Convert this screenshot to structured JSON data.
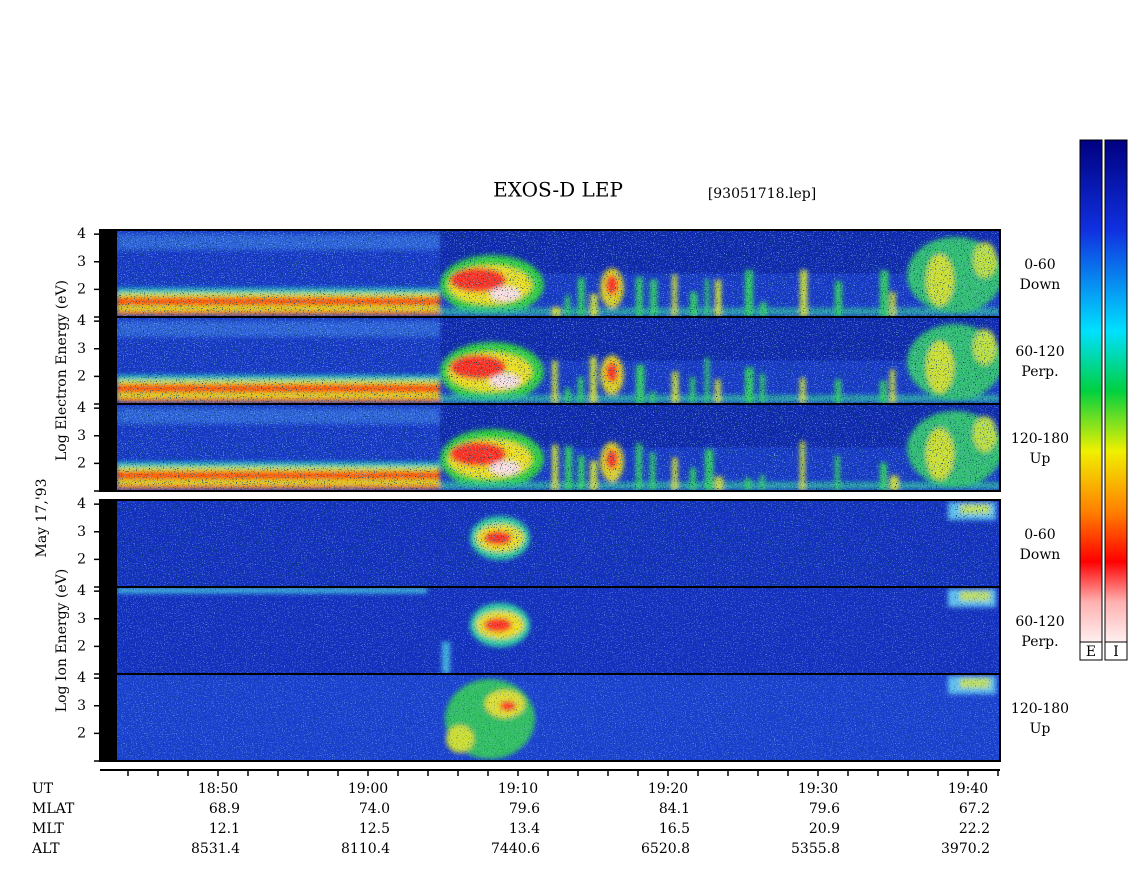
{
  "chart_data": {
    "type": "spectrogram",
    "title": "EXOS-D LEP",
    "file_label": "[93051718.lep]",
    "date_label": "May 17,'93",
    "ylim": [
      1,
      4.15
    ],
    "yticks": [
      2,
      3,
      4
    ],
    "groups": [
      {
        "y_label": "Log Electron Energy (eV)",
        "species": "electron",
        "panels": [
          {
            "pitch": "0-60",
            "direction": "Down"
          },
          {
            "pitch": "60-120",
            "direction": "Perp."
          },
          {
            "pitch": "120-180",
            "direction": "Up"
          }
        ]
      },
      {
        "y_label": "Log Ion Energy (eV)",
        "species": "ion",
        "panels": [
          {
            "pitch": "0-60",
            "direction": "Down"
          },
          {
            "pitch": "60-120",
            "direction": "Perp."
          },
          {
            "pitch": "120-180",
            "direction": "Up"
          }
        ]
      }
    ],
    "x_label": "UT",
    "xticks": [
      "18:50",
      "19:00",
      "19:10",
      "19:20",
      "19:30",
      "19:40"
    ],
    "ephemeris": [
      {
        "name": "MLAT",
        "values": [
          "68.9",
          "74.0",
          "79.6",
          "84.1",
          "79.6",
          "67.2"
        ]
      },
      {
        "name": "MLT",
        "values": [
          "12.1",
          "12.5",
          "13.4",
          "16.5",
          "20.9",
          "22.2"
        ]
      },
      {
        "name": "ALT",
        "values": [
          "8531.4",
          "8110.4",
          "7440.6",
          "6520.8",
          "5355.8",
          "3970.2"
        ]
      }
    ],
    "colorbars": [
      "E",
      "I"
    ]
  }
}
